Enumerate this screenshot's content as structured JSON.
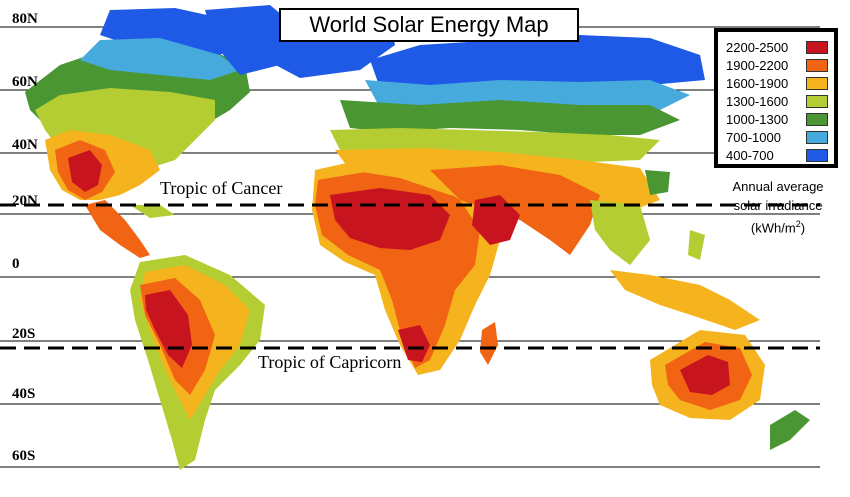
{
  "title": "World Solar Energy Map",
  "latitude_labels": [
    "80N",
    "60N",
    "40N",
    "20N",
    "0",
    "20S",
    "40S",
    "60S"
  ],
  "tropics": {
    "cancer": "Tropic of Cancer",
    "capricorn": "Tropic of Capricorn"
  },
  "legend": {
    "items": [
      {
        "range": "2200-2500",
        "color": "#c8141e"
      },
      {
        "range": "1900-2200",
        "color": "#f06414"
      },
      {
        "range": "1600-1900",
        "color": "#f5b41e"
      },
      {
        "range": "1300-1600",
        "color": "#b4cd32"
      },
      {
        "range": "1000-1300",
        "color": "#4a9632"
      },
      {
        "range": "700-1000",
        "color": "#46aadc"
      },
      {
        "range": "400-700",
        "color": "#1e5ae6"
      }
    ]
  },
  "unit": {
    "line1": "Annual average",
    "line2": "solar irradiance",
    "line3": "(kWh/m",
    "superscript": "2",
    "close": ")"
  }
}
